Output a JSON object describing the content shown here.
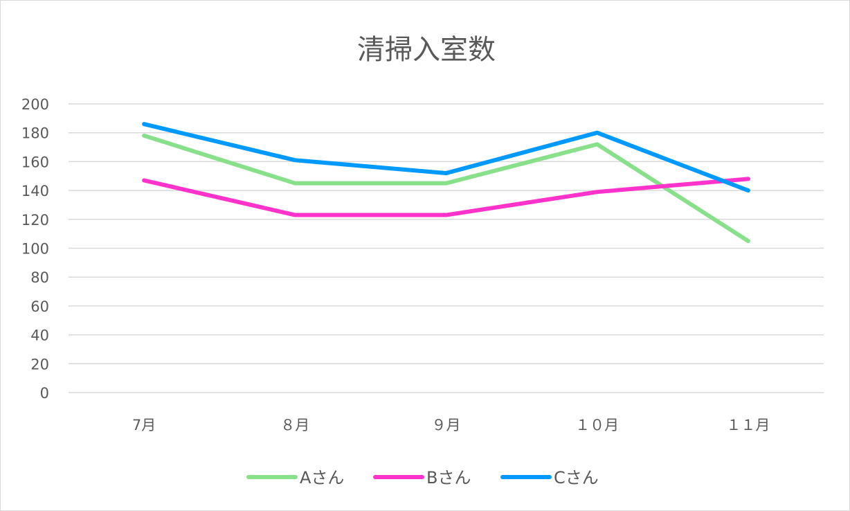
{
  "chart_data": {
    "type": "line",
    "title": "清掃入室数",
    "categories": [
      "7月",
      "８月",
      "９月",
      "１０月",
      "１１月"
    ],
    "ylim": [
      0,
      200
    ],
    "yticks": [
      0,
      20,
      40,
      60,
      80,
      100,
      120,
      140,
      160,
      180,
      200
    ],
    "grid": true,
    "legend": "bottom",
    "series": [
      {
        "name": "Aさん",
        "color": "#88e08b",
        "values": [
          178,
          145,
          145,
          172,
          105
        ]
      },
      {
        "name": "Bさん",
        "color": "#ff33cc",
        "values": [
          147,
          123,
          123,
          139,
          148
        ]
      },
      {
        "name": "Cさん",
        "color": "#0099ff",
        "values": [
          186,
          161,
          152,
          180,
          140
        ]
      }
    ]
  }
}
